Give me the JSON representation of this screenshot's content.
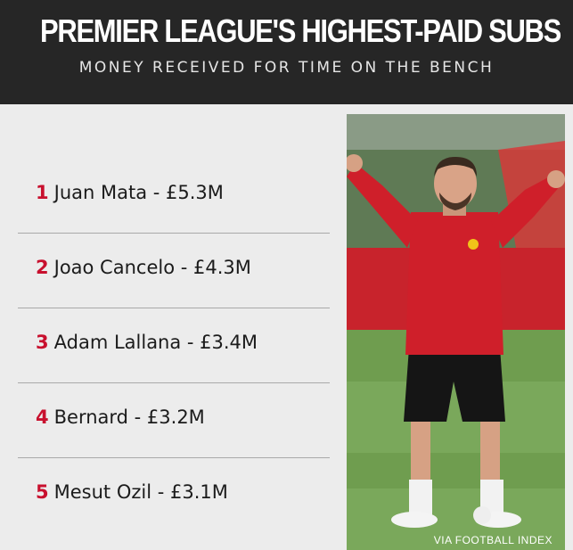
{
  "header": {
    "title": "PREMIER LEAGUE'S HIGHEST-PAID SUBS",
    "subtitle": "MONEY RECEIVED FOR TIME ON THE BENCH"
  },
  "list": [
    {
      "rank": "1",
      "text": "Juan Mata - £5.3M"
    },
    {
      "rank": "2",
      "text": "Joao Cancelo - £4.3M"
    },
    {
      "rank": "3",
      "text": "Adam Lallana - £3.4M"
    },
    {
      "rank": "4",
      "text": "Bernard - £3.2M"
    },
    {
      "rank": "5",
      "text": "Mesut Ozil - £3.1M"
    }
  ],
  "photo": {
    "credit": "VIA FOOTBALL INDEX"
  },
  "colors": {
    "header_bg": "#262626",
    "rank_red": "#c8102e",
    "page_bg": "#ececec"
  }
}
